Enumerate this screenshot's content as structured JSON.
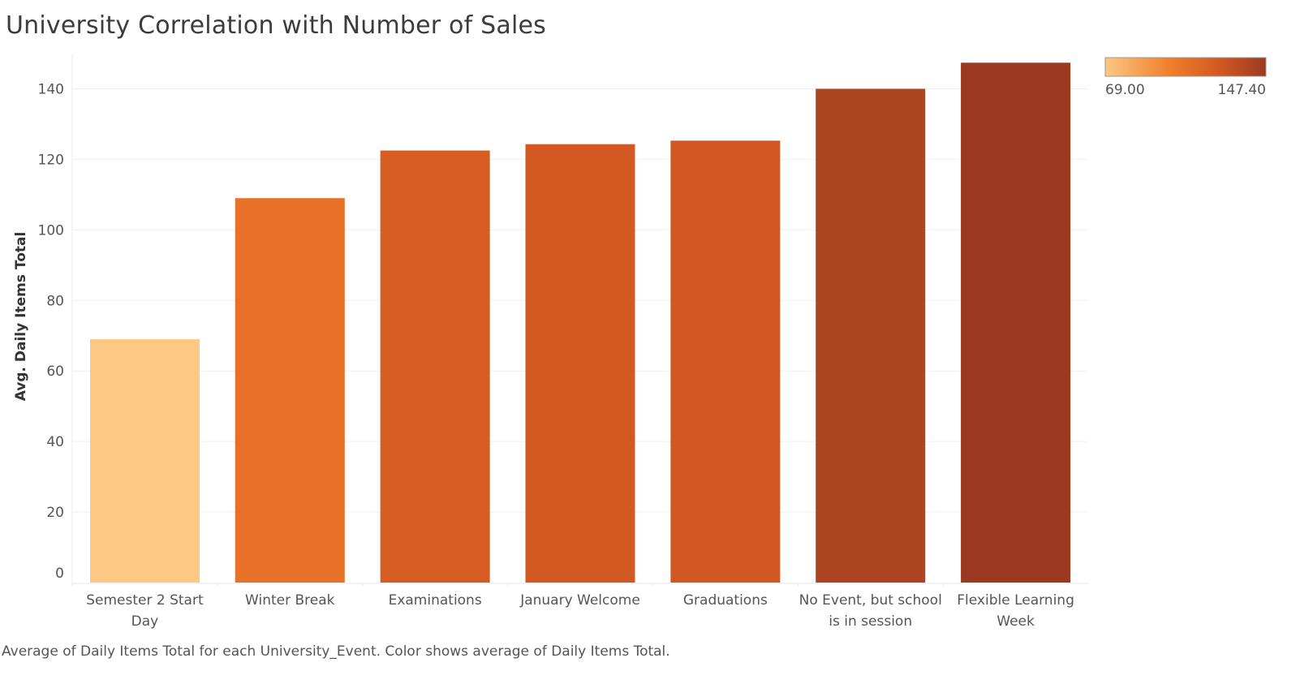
{
  "chart_data": {
    "type": "bar",
    "title": "University Correlation with Number of Sales",
    "ylabel": "Avg. Daily Items Total",
    "xlabel": "",
    "ylim": [
      0,
      150
    ],
    "yticks": [
      0,
      20,
      40,
      60,
      80,
      100,
      120,
      140
    ],
    "grid": true,
    "categories": [
      [
        "Semester 2 Start",
        "Day"
      ],
      [
        "Winter Break"
      ],
      [
        "Examinations"
      ],
      [
        "January Welcome"
      ],
      [
        "Graduations"
      ],
      [
        "No Event, but school",
        "is in session"
      ],
      [
        "Flexible Learning",
        "Week"
      ]
    ],
    "values": [
      69.0,
      109.0,
      122.5,
      124.3,
      125.3,
      140.0,
      147.4
    ],
    "color_legend": {
      "min_label": "69.00",
      "max_label": "147.40",
      "min": 69.0,
      "max": 147.4,
      "colors": [
        "#fdc784",
        "#f07f2a",
        "#d45a22",
        "#9b3a20"
      ],
      "placement": "top-right"
    },
    "caption": "Average of Daily Items Total for each University_Event.  Color shows average of Daily Items Total."
  }
}
